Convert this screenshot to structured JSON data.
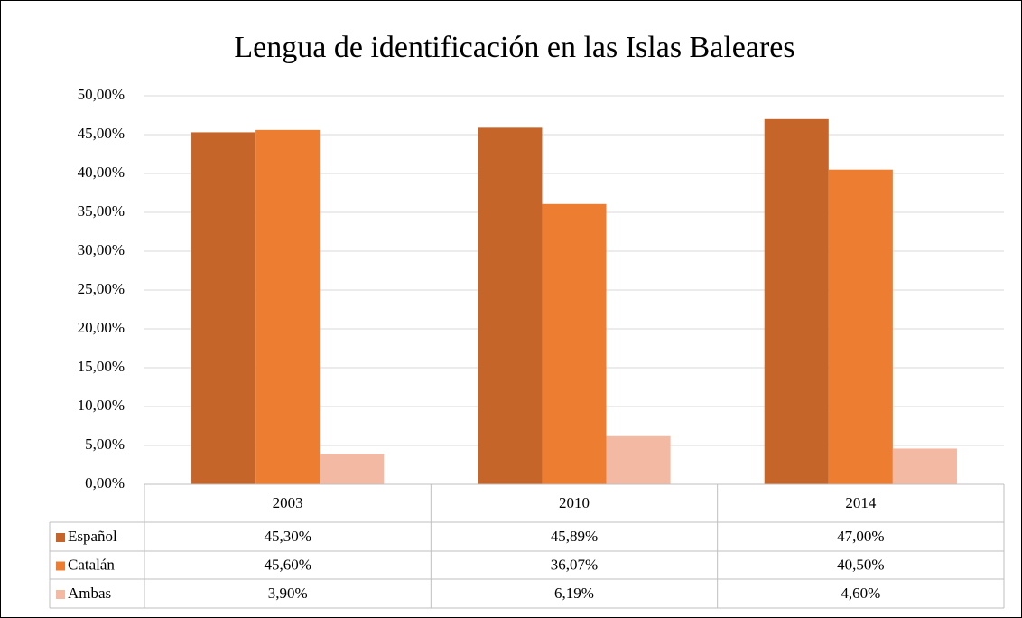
{
  "chart_data": {
    "type": "bar",
    "title": "Lengua de identificación en las Islas Baleares",
    "categories": [
      "2003",
      "2010",
      "2014"
    ],
    "series": [
      {
        "name": "Español",
        "color": "#c5652a",
        "values": [
          45.3,
          45.89,
          47.0
        ],
        "value_labels": [
          "45,30%",
          "45,89%",
          "47,00%"
        ]
      },
      {
        "name": "Catalán",
        "color": "#ed7d31",
        "values": [
          45.6,
          36.07,
          40.5
        ],
        "value_labels": [
          "45,60%",
          "36,07%",
          "40,50%"
        ]
      },
      {
        "name": "Ambas",
        "color": "#f4b9a2",
        "values": [
          3.9,
          6.19,
          4.6
        ],
        "value_labels": [
          "3,90%",
          "6,19%",
          "4,60%"
        ]
      }
    ],
    "ylim": [
      0,
      50
    ],
    "yticks": [
      {
        "value": 0,
        "label": "0,00%"
      },
      {
        "value": 5,
        "label": "5,00%"
      },
      {
        "value": 10,
        "label": "10,00%"
      },
      {
        "value": 15,
        "label": "15,00%"
      },
      {
        "value": 20,
        "label": "20,00%"
      },
      {
        "value": 25,
        "label": "25,00%"
      },
      {
        "value": 30,
        "label": "30,00%"
      },
      {
        "value": 35,
        "label": "35,00%"
      },
      {
        "value": 40,
        "label": "40,00%"
      },
      {
        "value": 45,
        "label": "45,00%"
      },
      {
        "value": 50,
        "label": "50,00%"
      }
    ],
    "grid": true,
    "legend": "table"
  }
}
